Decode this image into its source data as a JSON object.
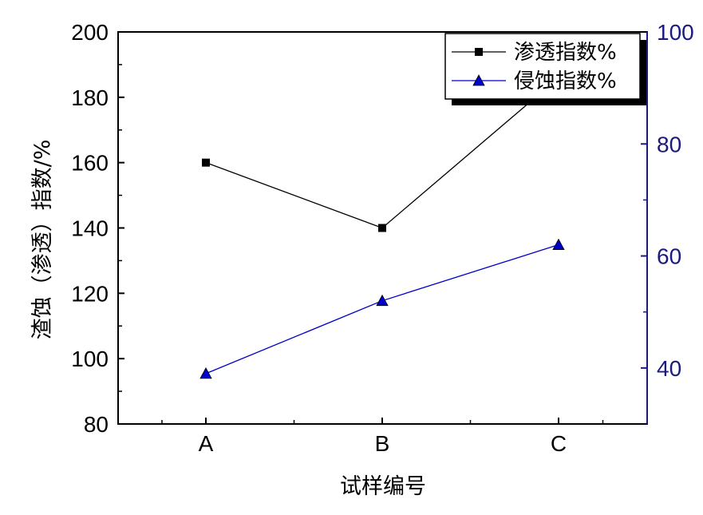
{
  "chart_data": {
    "type": "line",
    "categories": [
      "A",
      "B",
      "C"
    ],
    "xlabel": "试样编号",
    "ylabel_left": "渣蚀（渗透）指数/%",
    "ylim_left": [
      80,
      200
    ],
    "yticks_left": [
      "80",
      "100",
      "120",
      "140",
      "160",
      "180",
      "200"
    ],
    "ylim_right": [
      30,
      100
    ],
    "yticks_right": [
      "40",
      "60",
      "80",
      "100"
    ],
    "right_axis_color": "#1a1a80",
    "legend_position": "top-right",
    "grid": false,
    "series": [
      {
        "name": "渗透指数%",
        "axis": "left",
        "marker": "square",
        "color": "#000000",
        "values": [
          160,
          140,
          186
        ]
      },
      {
        "name": "侵蚀指数%",
        "axis": "right",
        "marker": "triangle",
        "color": "#0000cc",
        "values": [
          39,
          52,
          62
        ]
      }
    ]
  }
}
